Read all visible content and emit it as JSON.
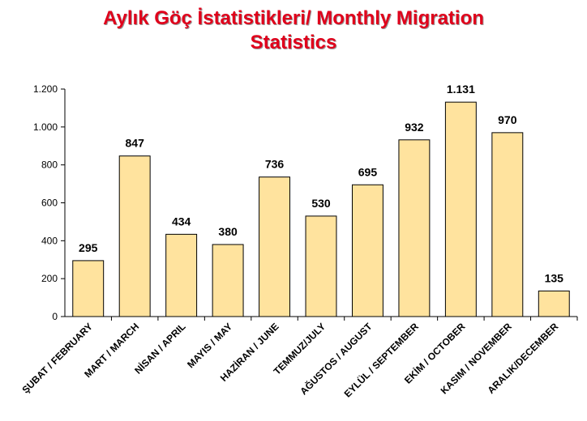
{
  "chart_data": {
    "type": "bar",
    "title_line1": "Aylık Göç İstatistikleri/ Monthly Migration",
    "title_line2": "Statistics",
    "categories": [
      "ŞUBAT / FEBRUARY",
      "MART / MARCH",
      "NİSAN / APRIL",
      "MAYIS / MAY",
      "HAZİRAN / JUNE",
      "TEMMUZ/JULY",
      "AĞUSTOS / AUGUST",
      "EYLÜL / SEPTEMBER",
      "EKİM / OCTOBER",
      "KASIM / NOVEMBER",
      "ARALIK/DECEMBER"
    ],
    "values": [
      295,
      847,
      434,
      380,
      736,
      530,
      695,
      932,
      1131,
      970,
      135
    ],
    "value_labels": [
      "295",
      "847",
      "434",
      "380",
      "736",
      "530",
      "695",
      "932",
      "1.131",
      "970",
      "135"
    ],
    "yticks": [
      0,
      200,
      400,
      600,
      800,
      1000,
      1200
    ],
    "ytick_labels": [
      "0",
      "200",
      "400",
      "600",
      "800",
      "1.000",
      "1.200"
    ],
    "ylim": [
      0,
      1200
    ],
    "grid": false,
    "bar_color": "#ffe39e",
    "bar_stroke": "#000000"
  }
}
